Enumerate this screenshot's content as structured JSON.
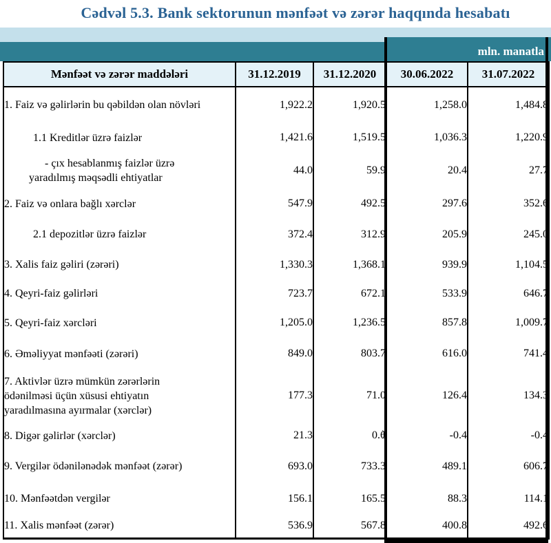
{
  "title": "Cədvəl 5.3. Bank sektorunun mənfəət və zərər haqqında hesabatı",
  "unit_label": "mln. manatla",
  "colors": {
    "title_color": "#2b6394",
    "band_light": "#c4e0eb",
    "band_teal": "#2e7e92",
    "header_bg": "#e4f2f8",
    "border_color": "#000000"
  },
  "table": {
    "header": [
      "Mənfəət və zərər maddələri",
      "31.12.2019",
      "31.12.2020",
      "30.06.2022",
      "31.07.2022"
    ],
    "rows": [
      {
        "label": "1. Faiz və gəlirlərin bu qəbildən olan növləri",
        "indent": 0,
        "values": [
          "1,922.2",
          "1,920.5",
          "1,258.0",
          "1,484.8"
        ]
      },
      {
        "label": "1.1 Kreditlər üzrə faizlər",
        "indent": 1,
        "values": [
          "1,421.6",
          "1,519.5",
          "1,036.3",
          "1,220.9"
        ]
      },
      {
        "label": "-  çıx hesablanmış faizlər üzrə\nyaradılmış məqsədli ehtiyatlar",
        "indent": 2,
        "values": [
          "44.0",
          "59.9",
          "20.4",
          "27.7"
        ]
      },
      {
        "label": "2. Faiz və onlara bağlı xərclər",
        "indent": 0,
        "values": [
          "547.9",
          "492.5",
          "297.6",
          "352.6"
        ]
      },
      {
        "label": "2.1 depozitlər üzrə faizlər",
        "indent": 1,
        "values": [
          "372.4",
          "312.9",
          "205.9",
          "245.0"
        ]
      },
      {
        "label": "3. Xalis faiz gəliri (zərəri)",
        "indent": 0,
        "values": [
          "1,330.3",
          "1,368.1",
          "939.9",
          "1,104.5"
        ]
      },
      {
        "label": "4. Qeyri-faiz gəlirləri",
        "indent": 0,
        "values": [
          "723.7",
          "672.1",
          "533.9",
          "646.7"
        ]
      },
      {
        "label": "5. Qeyri-faiz xərcləri",
        "indent": 0,
        "values": [
          "1,205.0",
          "1,236.5",
          "857.8",
          "1,009.7"
        ]
      },
      {
        "label": "6. Əməliyyat mənfəəti (zərəri)",
        "indent": 0,
        "values": [
          "849.0",
          "803.7",
          "616.0",
          "741.4"
        ]
      },
      {
        "label": "7. Aktivlər üzrə mümkün zərərlərin\nödənilməsi üçün xüsusi ehtiyatın\nyaradılmasına ayırmalar (xərclər)",
        "indent": 0,
        "values": [
          "177.3",
          "71.0",
          "126.4",
          "134.3"
        ]
      },
      {
        "label": "8. Digər gəlirlər (xərclər)",
        "indent": 0,
        "values": [
          "21.3",
          "0.6",
          "-0.4",
          "-0.4"
        ],
        "suffix": {
          "col": 1,
          "mark": ")"
        }
      },
      {
        "label": "9. Vergilər ödənilənədək mənfəət (zərər)",
        "indent": 0,
        "values": [
          "693.0",
          "733.3",
          "489.1",
          "606.7"
        ]
      },
      {
        "label": "10. Mənfəətdən vergilər",
        "indent": 0,
        "values": [
          "156.1",
          "165.5",
          "88.3",
          "114.1"
        ]
      },
      {
        "label": "11. Xalis mənfəət (zərər)",
        "indent": 0,
        "values": [
          "536.9",
          "567.8",
          "400.8",
          "492.6"
        ]
      }
    ]
  }
}
